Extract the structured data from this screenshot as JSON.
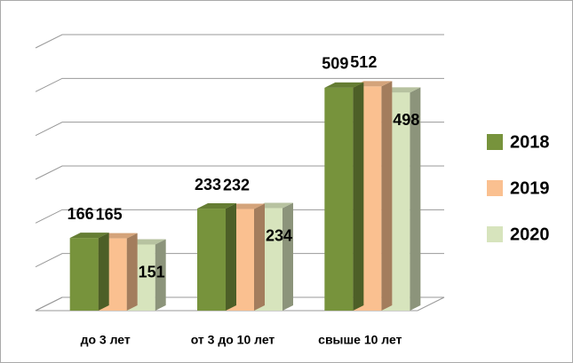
{
  "chart_data": {
    "type": "bar3d",
    "categories": [
      "до 3 лет",
      "от 3 до 10 лет",
      "свыше 10 лет"
    ],
    "series": [
      {
        "name": "2018",
        "color": "#77933c",
        "values": [
          166,
          233,
          509
        ]
      },
      {
        "name": "2019",
        "color": "#fac090",
        "values": [
          165,
          232,
          512
        ]
      },
      {
        "name": "2020",
        "color": "#d7e4bd",
        "values": [
          151,
          234,
          498
        ]
      }
    ],
    "ylim": [
      0,
      600
    ],
    "yticks": [
      0,
      100,
      200,
      300,
      400,
      500,
      600
    ],
    "grid": true,
    "legend": "right"
  }
}
